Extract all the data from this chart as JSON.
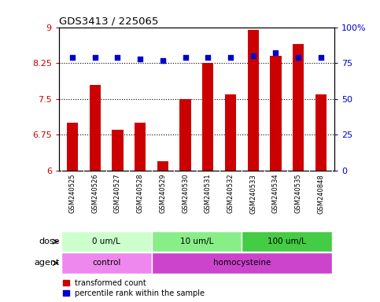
{
  "title": "GDS3413 / 225065",
  "samples": [
    "GSM240525",
    "GSM240526",
    "GSM240527",
    "GSM240528",
    "GSM240529",
    "GSM240530",
    "GSM240531",
    "GSM240532",
    "GSM240533",
    "GSM240534",
    "GSM240535",
    "GSM240848"
  ],
  "bar_values": [
    7.0,
    7.8,
    6.85,
    7.0,
    6.2,
    7.5,
    8.25,
    7.6,
    8.95,
    8.4,
    8.65,
    7.6
  ],
  "dot_values": [
    79,
    79,
    79,
    78,
    77,
    79,
    79,
    79,
    80,
    82,
    79,
    79
  ],
  "bar_color": "#cc0000",
  "dot_color": "#0000cc",
  "ylim_left": [
    6,
    9
  ],
  "ylim_right": [
    0,
    100
  ],
  "yticks_left": [
    6,
    6.75,
    7.5,
    8.25,
    9
  ],
  "yticks_right": [
    0,
    25,
    50,
    75,
    100
  ],
  "ytick_labels_left": [
    "6",
    "6.75",
    "7.5",
    "8.25",
    "9"
  ],
  "ytick_labels_right": [
    "0",
    "25",
    "50",
    "75",
    "100%"
  ],
  "hlines": [
    6.75,
    7.5,
    8.25
  ],
  "dose_groups": [
    {
      "label": "0 um/L",
      "start": 0,
      "end": 4,
      "color": "#ccffcc"
    },
    {
      "label": "10 um/L",
      "start": 4,
      "end": 8,
      "color": "#88ee88"
    },
    {
      "label": "100 um/L",
      "start": 8,
      "end": 12,
      "color": "#44cc44"
    }
  ],
  "agent_groups": [
    {
      "label": "control",
      "start": 0,
      "end": 4,
      "color": "#ee88ee"
    },
    {
      "label": "homocysteine",
      "start": 4,
      "end": 12,
      "color": "#cc44cc"
    }
  ],
  "dose_label": "dose",
  "agent_label": "agent",
  "legend_bar_label": "transformed count",
  "legend_dot_label": "percentile rank within the sample",
  "xtick_bg_color": "#d8d8d8",
  "plot_bg": "#ffffff",
  "bar_width": 0.5
}
